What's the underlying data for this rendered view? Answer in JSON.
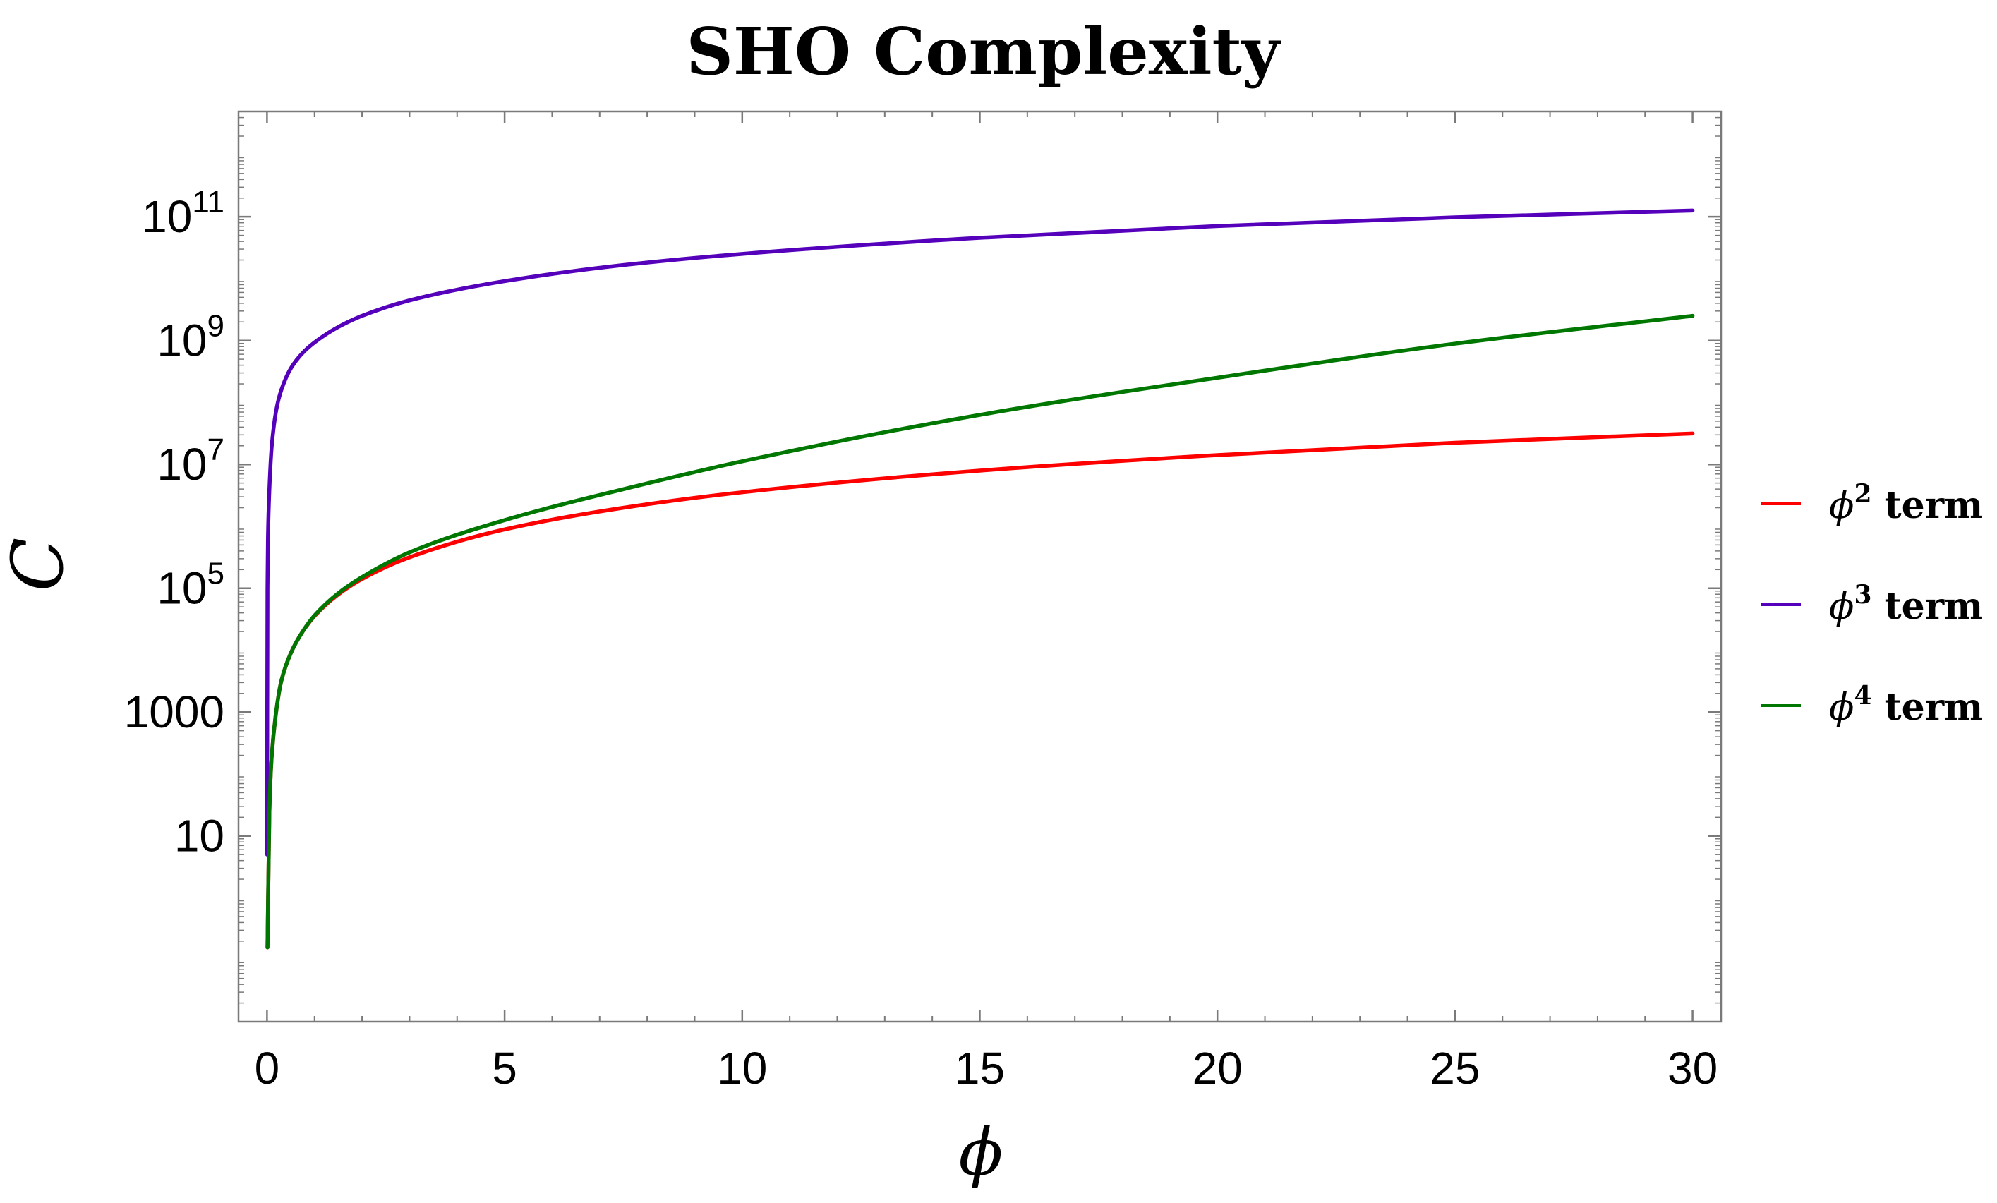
{
  "chart_data": {
    "type": "line",
    "title": "SHO Complexity",
    "xlabel": "ϕ",
    "ylabel": "C",
    "xlim": [
      -0.6,
      30.6
    ],
    "ylim_log10": [
      -2.0,
      12.7
    ],
    "y_scale": "log",
    "grid": false,
    "legend_placement": "right",
    "x_ticks": [
      0,
      5,
      10,
      15,
      20,
      25,
      30
    ],
    "x_tick_labels": [
      "0",
      "5",
      "10",
      "15",
      "20",
      "25",
      "30"
    ],
    "y_ticks": [
      {
        "exp": 1,
        "label": "10",
        "sup": ""
      },
      {
        "exp": 3,
        "label": "1000",
        "sup": ""
      },
      {
        "exp": 5,
        "label": "10",
        "sup": "5"
      },
      {
        "exp": 7,
        "label": "10",
        "sup": "7"
      },
      {
        "exp": 9,
        "label": "10",
        "sup": "9"
      },
      {
        "exp": 11,
        "label": "10",
        "sup": "11"
      }
    ],
    "series": [
      {
        "name": "ϕ",
        "sup": "2",
        "suffix": " term",
        "color": "#ff0000",
        "x": [
          0.01,
          0.05,
          0.1,
          0.2,
          0.3,
          0.5,
          0.75,
          1,
          1.5,
          2,
          3,
          5,
          7.5,
          10,
          15,
          20,
          25,
          30
        ],
        "log10_y": [
          -0.8,
          1.4,
          2.3,
          3.05,
          3.5,
          3.95,
          4.3,
          4.55,
          4.9,
          5.15,
          5.5,
          5.95,
          6.3,
          6.55,
          6.9,
          7.15,
          7.35,
          7.5
        ]
      },
      {
        "name": "ϕ",
        "sup": "3",
        "suffix": " term",
        "color": "#5500bb",
        "x": [
          0.002,
          0.005,
          0.01,
          0.02,
          0.05,
          0.1,
          0.2,
          0.3,
          0.5,
          0.75,
          1,
          1.5,
          2,
          3,
          5,
          7.5,
          10,
          15,
          20,
          25,
          30
        ],
        "log10_y": [
          0.7,
          3.0,
          5.0,
          5.8,
          6.6,
          7.3,
          7.9,
          8.2,
          8.55,
          8.8,
          8.97,
          9.22,
          9.4,
          9.65,
          9.96,
          10.22,
          10.4,
          10.66,
          10.85,
          10.99,
          11.1
        ]
      },
      {
        "name": "ϕ",
        "sup": "4",
        "suffix": " term",
        "color": "#007700",
        "x": [
          0.01,
          0.05,
          0.1,
          0.2,
          0.3,
          0.5,
          0.75,
          1,
          1.5,
          2,
          3,
          5,
          7.5,
          10,
          15,
          20,
          25,
          30
        ],
        "log10_y": [
          -0.8,
          1.4,
          2.3,
          3.05,
          3.5,
          3.95,
          4.3,
          4.56,
          4.92,
          5.18,
          5.58,
          6.1,
          6.6,
          7.05,
          7.8,
          8.4,
          8.95,
          9.4
        ]
      }
    ]
  }
}
